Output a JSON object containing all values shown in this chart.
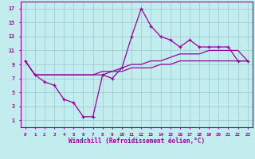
{
  "xlabel": "Windchill (Refroidissement éolien,°C)",
  "background_color": "#c2ecee",
  "grid_color": "#9ecdd4",
  "line_color": "#990099",
  "x_hours": [
    0,
    1,
    2,
    3,
    4,
    5,
    6,
    7,
    8,
    9,
    10,
    11,
    12,
    13,
    14,
    15,
    16,
    17,
    18,
    19,
    20,
    21,
    22,
    23
  ],
  "windchill": [
    9.5,
    7.5,
    6.5,
    6.0,
    4.0,
    3.5,
    1.5,
    1.5,
    7.5,
    7.0,
    8.5,
    13.0,
    17.0,
    14.5,
    13.0,
    12.5,
    11.5,
    12.5,
    11.5,
    11.5,
    11.5,
    11.5,
    9.5,
    9.5
  ],
  "temp_line1": [
    9.5,
    7.5,
    7.5,
    7.5,
    7.5,
    7.5,
    7.5,
    7.5,
    8.0,
    8.0,
    8.5,
    9.0,
    9.0,
    9.5,
    9.5,
    10.0,
    10.5,
    10.5,
    10.5,
    11.0,
    11.0,
    11.0,
    11.0,
    9.5
  ],
  "temp_line2": [
    9.5,
    7.5,
    7.5,
    7.5,
    7.5,
    7.5,
    7.5,
    7.5,
    7.5,
    8.0,
    8.0,
    8.5,
    8.5,
    8.5,
    9.0,
    9.0,
    9.5,
    9.5,
    9.5,
    9.5,
    9.5,
    9.5,
    9.5,
    9.5
  ],
  "ylim": [
    0,
    18
  ],
  "xlim": [
    -0.5,
    23.5
  ],
  "yticks": [
    1,
    3,
    5,
    7,
    9,
    11,
    13,
    15,
    17
  ],
  "xticks": [
    0,
    1,
    2,
    3,
    4,
    5,
    6,
    7,
    8,
    9,
    10,
    11,
    12,
    13,
    14,
    15,
    16,
    17,
    18,
    19,
    20,
    21,
    22,
    23
  ]
}
